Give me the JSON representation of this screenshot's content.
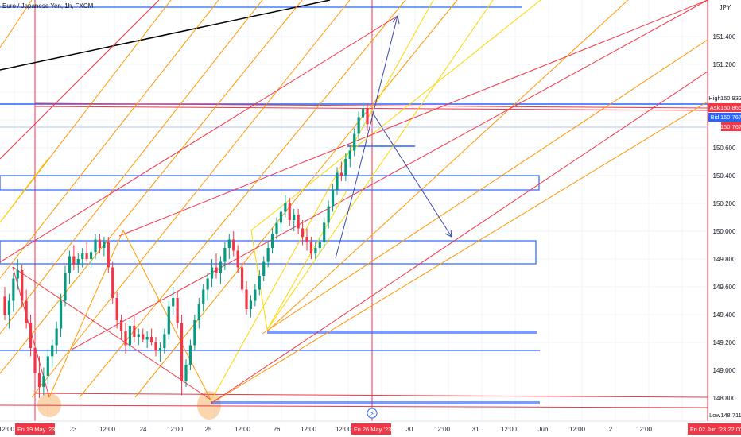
{
  "header": {
    "symbol_title": "Euro / Japanese Yen, 1h, FXCM"
  },
  "chart_data": {
    "type": "candlestick",
    "title": "Euro / Japanese Yen, 1h, FXCM",
    "currency_label": "JPY",
    "y_tick_labels": [
      "151.400",
      "151.200",
      "150.600",
      "150.400",
      "150.200",
      "150.000",
      "149.800",
      "149.600",
      "149.400",
      "149.200",
      "149.000",
      "148.800"
    ],
    "price_tags": [
      {
        "label": "High",
        "value": "150.932",
        "bg": "#ffffff",
        "fg": "#131722"
      },
      {
        "label": "Ask",
        "value": "150.865",
        "bg": "#f23645",
        "fg": "#ffffff"
      },
      {
        "label": "Bid",
        "value": "150.767",
        "bg": "#2962ff",
        "fg": "#ffffff"
      },
      {
        "label": "",
        "value": "150.767",
        "bg": "#f23645",
        "fg": "#ffffff"
      },
      {
        "label": "Low",
        "value": "148.711",
        "bg": "#ffffff",
        "fg": "#131722"
      }
    ],
    "x_tick_labels": [
      "12:00",
      "23",
      "12:00",
      "24",
      "12:00",
      "25",
      "12:00",
      "26",
      "12:00",
      "12:00",
      "30",
      "12:00",
      "31",
      "12:00",
      "Jun",
      "12:00",
      "2",
      "12:00"
    ],
    "x_highlight_labels": [
      "Fri 19 May '23  22:00",
      "Fri 26 May '23  22:00",
      "Fri 02 Jun '23  22:00"
    ],
    "close_marker": "⚡",
    "candles_ohlc": [
      [
        149.53,
        149.6,
        149.36,
        149.4
      ],
      [
        149.4,
        149.55,
        149.3,
        149.5
      ],
      [
        149.5,
        149.7,
        149.42,
        149.66
      ],
      [
        149.66,
        149.8,
        149.58,
        149.72
      ],
      [
        149.72,
        149.76,
        149.45,
        149.5
      ],
      [
        149.5,
        149.58,
        149.3,
        149.34
      ],
      [
        149.34,
        149.4,
        149.1,
        149.16
      ],
      [
        149.16,
        149.24,
        148.93,
        148.98
      ],
      [
        148.98,
        149.1,
        148.8,
        148.88
      ],
      [
        148.88,
        149.02,
        148.82,
        148.96
      ],
      [
        148.96,
        149.15,
        148.9,
        149.1
      ],
      [
        149.1,
        149.22,
        149.02,
        149.18
      ],
      [
        149.18,
        149.35,
        149.12,
        149.3
      ],
      [
        149.3,
        149.55,
        149.24,
        149.5
      ],
      [
        149.5,
        149.75,
        149.46,
        149.7
      ],
      [
        149.7,
        149.86,
        149.62,
        149.82
      ],
      [
        149.82,
        149.9,
        149.72,
        149.76
      ],
      [
        149.76,
        149.84,
        149.7,
        149.8
      ],
      [
        149.8,
        149.88,
        149.74,
        149.84
      ],
      [
        149.84,
        149.92,
        149.78,
        149.8
      ],
      [
        149.8,
        149.88,
        149.74,
        149.85
      ],
      [
        149.85,
        149.98,
        149.8,
        149.94
      ],
      [
        149.94,
        149.98,
        149.84,
        149.88
      ],
      [
        149.88,
        149.96,
        149.82,
        149.92
      ],
      [
        149.92,
        149.96,
        149.7,
        149.74
      ],
      [
        149.74,
        149.78,
        149.48,
        149.52
      ],
      [
        149.52,
        149.56,
        149.3,
        149.36
      ],
      [
        149.36,
        149.4,
        149.22,
        149.28
      ],
      [
        149.28,
        149.34,
        149.12,
        149.18
      ],
      [
        149.18,
        149.36,
        149.14,
        149.32
      ],
      [
        149.32,
        149.4,
        149.2,
        149.24
      ],
      [
        149.24,
        149.3,
        149.18,
        149.26
      ],
      [
        149.26,
        149.3,
        149.2,
        149.22
      ],
      [
        149.22,
        149.28,
        149.16,
        149.24
      ],
      [
        149.24,
        149.3,
        149.18,
        149.2
      ],
      [
        149.2,
        149.24,
        149.1,
        149.14
      ],
      [
        149.14,
        149.2,
        149.06,
        149.16
      ],
      [
        149.16,
        149.3,
        149.12,
        149.26
      ],
      [
        149.26,
        149.5,
        149.22,
        149.46
      ],
      [
        149.46,
        149.6,
        149.4,
        149.52
      ],
      [
        149.52,
        149.56,
        149.3,
        149.34
      ],
      [
        149.34,
        149.4,
        148.82,
        148.92
      ],
      [
        148.92,
        149.08,
        148.88,
        149.04
      ],
      [
        149.04,
        149.22,
        149.0,
        149.18
      ],
      [
        149.18,
        149.4,
        149.14,
        149.36
      ],
      [
        149.36,
        149.52,
        149.3,
        149.48
      ],
      [
        149.48,
        149.62,
        149.42,
        149.58
      ],
      [
        149.58,
        149.7,
        149.5,
        149.66
      ],
      [
        149.66,
        149.8,
        149.6,
        149.74
      ],
      [
        149.74,
        149.84,
        149.66,
        149.7
      ],
      [
        149.7,
        149.82,
        149.62,
        149.78
      ],
      [
        149.78,
        149.92,
        149.72,
        149.88
      ],
      [
        149.88,
        149.98,
        149.8,
        149.94
      ],
      [
        149.94,
        150.0,
        149.82,
        149.86
      ],
      [
        149.86,
        149.9,
        149.7,
        149.74
      ],
      [
        149.74,
        149.78,
        149.55,
        149.58
      ],
      [
        149.58,
        149.64,
        149.4,
        149.44
      ],
      [
        149.44,
        149.54,
        149.38,
        149.5
      ],
      [
        149.5,
        149.62,
        149.46,
        149.58
      ],
      [
        149.58,
        149.72,
        149.54,
        149.68
      ],
      [
        149.68,
        149.82,
        149.64,
        149.78
      ],
      [
        149.78,
        149.92,
        149.74,
        149.88
      ],
      [
        149.88,
        150.02,
        149.84,
        149.98
      ],
      [
        149.98,
        150.1,
        149.94,
        150.06
      ],
      [
        150.06,
        150.18,
        150.0,
        150.14
      ],
      [
        150.14,
        150.26,
        150.1,
        150.2
      ],
      [
        150.2,
        150.24,
        150.04,
        150.08
      ],
      [
        150.08,
        150.16,
        150.0,
        150.12
      ],
      [
        150.12,
        150.16,
        149.98,
        150.02
      ],
      [
        150.02,
        150.08,
        149.9,
        149.96
      ],
      [
        149.96,
        150.02,
        149.86,
        149.92
      ],
      [
        149.92,
        149.96,
        149.8,
        149.84
      ],
      [
        149.84,
        149.92,
        149.8,
        149.88
      ],
      [
        149.88,
        149.96,
        149.84,
        149.92
      ],
      [
        149.92,
        150.1,
        149.88,
        150.06
      ],
      [
        150.06,
        150.22,
        150.02,
        150.18
      ],
      [
        150.18,
        150.34,
        150.14,
        150.3
      ],
      [
        150.3,
        150.46,
        150.26,
        150.42
      ],
      [
        150.42,
        150.5,
        150.36,
        150.4
      ],
      [
        150.4,
        150.56,
        150.36,
        150.52
      ],
      [
        150.52,
        150.62,
        150.46,
        150.58
      ],
      [
        150.58,
        150.74,
        150.54,
        150.7
      ],
      [
        150.7,
        150.86,
        150.66,
        150.82
      ],
      [
        150.82,
        150.93,
        150.76,
        150.88
      ],
      [
        150.88,
        150.92,
        150.72,
        150.77
      ]
    ]
  }
}
